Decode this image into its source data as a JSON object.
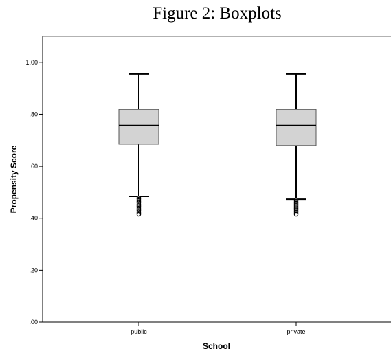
{
  "page_title": "Figure 2: Boxplots",
  "chart_data": {
    "type": "boxplot",
    "xlabel": "School",
    "ylabel": "Propensity Score",
    "ylim": [
      0.0,
      1.1
    ],
    "yticks": [
      0.0,
      0.2,
      0.4,
      0.6,
      0.8,
      1.0
    ],
    "ytick_labels": [
      ".00",
      ".20",
      ".40",
      ".60",
      ".80",
      "1.00"
    ],
    "categories": [
      "public",
      "private"
    ],
    "box_fill": "#d3d3d3",
    "box_stroke": "#555555",
    "boxes": [
      {
        "category": "public",
        "whisker_low": 0.484,
        "q1": 0.685,
        "median": 0.757,
        "q3": 0.819,
        "whisker_high": 0.955,
        "outlier_range": [
          0.415,
          0.478
        ]
      },
      {
        "category": "private",
        "whisker_low": 0.473,
        "q1": 0.68,
        "median": 0.757,
        "q3": 0.819,
        "whisker_high": 0.955,
        "outlier_range": [
          0.415,
          0.47
        ]
      }
    ],
    "grid": false,
    "legend": "none"
  }
}
